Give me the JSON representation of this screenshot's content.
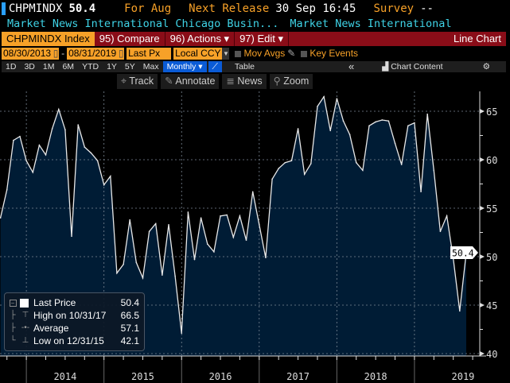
{
  "header": {
    "ticker": "CHPMINDX",
    "last": "50.4",
    "period": "For Aug",
    "next_release_label": "Next Release",
    "next_release_value": "30 Sep 16:45",
    "survey_label": "Survey",
    "survey_value": "--",
    "source_left": "Market News International Chicago Busin...",
    "source_right": "Market News International"
  },
  "toolbar": {
    "security": "CHPMINDX Index",
    "compare": "95) Compare",
    "actions": "96) Actions ▾",
    "edit": "97) Edit ▾",
    "chart_type": "Line Chart",
    "start_date": "08/30/2013",
    "date_sep": "-",
    "end_date": "08/31/2019",
    "field": "Last Px",
    "currency": "Local CCY",
    "mov_avgs": "Mov Avgs",
    "key_events": "Key Events",
    "ranges": [
      "1D",
      "3D",
      "1M",
      "6M",
      "YTD",
      "1Y",
      "5Y",
      "Max"
    ],
    "frequency": "Monthly ▾",
    "table": "Table",
    "collapse": "«",
    "chart_content": "Chart Content",
    "track": "Track",
    "annotate": "Annotate",
    "news": "News",
    "zoom": "Zoom"
  },
  "legend": {
    "last_label": "Last Price",
    "last_value": "50.4",
    "high_label": "High on 10/31/17",
    "high_value": "66.5",
    "avg_label": "Average",
    "avg_value": "57.1",
    "low_label": "Low on 12/31/15",
    "low_value": "42.1"
  },
  "colors": {
    "accent": "#f7a128",
    "bar": "#8a0d18",
    "fill": "#001c35",
    "line": "#e8e8e8",
    "cyan": "#3fd3e6",
    "blue": "#0a5bd6"
  },
  "chart_data": {
    "type": "area",
    "title": "CHPMINDX Index",
    "start": "2013-08",
    "frequency": "monthly",
    "x_tick_labels": [
      "2014",
      "2015",
      "2016",
      "2017",
      "2018",
      "2019"
    ],
    "y_ticks": [
      40,
      45,
      50,
      55,
      60,
      65
    ],
    "ylim": [
      39.5,
      68
    ],
    "grid": true,
    "last_value_label": "50.4",
    "values": [
      54.0,
      56.9,
      62.0,
      62.4,
      59.9,
      58.7,
      61.5,
      60.5,
      63.2,
      65.2,
      63.1,
      52.1,
      63.6,
      61.3,
      60.7,
      59.9,
      57.4,
      58.3,
      48.3,
      49.2,
      53.8,
      49.4,
      47.8,
      52.6,
      53.4,
      48.1,
      53.3,
      48.0,
      42.1,
      54.6,
      49.7,
      54.0,
      51.3,
      50.5,
      54.2,
      54.3,
      52.0,
      54.2,
      51.7,
      56.7,
      53.3,
      49.9,
      58.0,
      59.1,
      59.7,
      59.9,
      63.2,
      58.5,
      59.6,
      65.5,
      66.5,
      63.0,
      66.3,
      64.0,
      62.6,
      59.7,
      58.9,
      63.5,
      63.9,
      64.1,
      64.0,
      61.7,
      59.5,
      63.5,
      63.8,
      56.7,
      64.7,
      58.9,
      52.6,
      54.2,
      49.8,
      44.4,
      50.4
    ]
  }
}
